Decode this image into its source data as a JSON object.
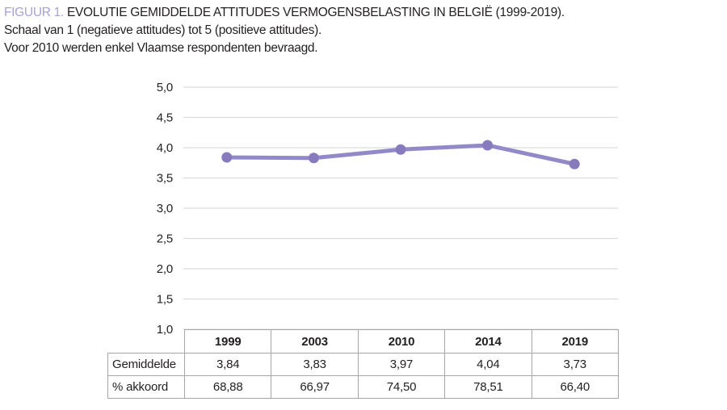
{
  "header": {
    "figure_label": "FIGUUR 1.",
    "title": "EVOLUTIE GEMIDDELDE ATTITUDES VERMOGENSBELASTING IN BELGIË (1999-2019).",
    "subtitle_scale": "Schaal van 1 (negatieve attitudes) tot 5 (positieve attitudes).",
    "subtitle_note": "Voor 2010 werden enkel Vlaamse respondenten bevraagd."
  },
  "chart_data": {
    "type": "line",
    "title": "Evolutie gemiddelde attitudes vermogensbelasting in België (1999-2019)",
    "categories": [
      "1999",
      "2003",
      "2010",
      "2014",
      "2019"
    ],
    "series": [
      {
        "name": "Gemiddelde",
        "values": [
          3.84,
          3.83,
          3.97,
          4.04,
          3.73
        ]
      }
    ],
    "xlabel": "",
    "ylabel": "",
    "ylim": [
      1.0,
      5.0
    ],
    "ytick_step": 0.5,
    "ytick_labels": [
      "5,0",
      "4,5",
      "4,0",
      "3,5",
      "3,0",
      "2,5",
      "2,0",
      "1,5",
      "1,0"
    ],
    "grid": "horizontal-only",
    "legend": "none",
    "line_color": "#928ac8",
    "marker_color": "#877bbe",
    "grid_color": "#dcdcdc"
  },
  "table": {
    "columns": [
      "1999",
      "2003",
      "2010",
      "2014",
      "2019"
    ],
    "rows": [
      {
        "label": "Gemiddelde",
        "values": [
          "3,84",
          "3,83",
          "3,97",
          "4,04",
          "3,73"
        ]
      },
      {
        "label": "% akkoord",
        "values": [
          "68,88",
          "66,97",
          "74,50",
          "78,51",
          "66,40"
        ]
      }
    ]
  },
  "colors": {
    "accent_purple": "#a7a1d7",
    "text": "#231f20",
    "grid": "#dcdcdc",
    "table_border": "#a6a6a6",
    "background": "#ffffff"
  }
}
